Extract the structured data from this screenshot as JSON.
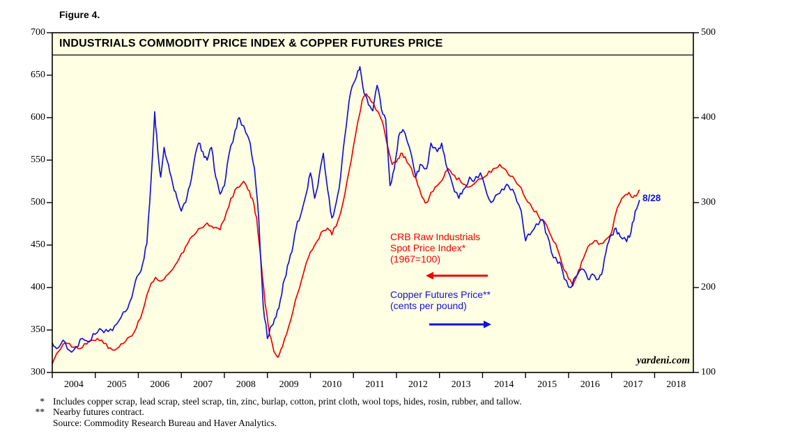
{
  "figure_label": "Figure 4.",
  "chart_data": {
    "type": "line",
    "title": "INDUSTRIALS COMMODITY PRICE INDEX & COPPER FUTURES PRICE",
    "x_axis": {
      "range": [
        2004.0,
        2018.9
      ],
      "years": [
        2004,
        2005,
        2006,
        2007,
        2008,
        2009,
        2010,
        2011,
        2012,
        2013,
        2014,
        2015,
        2016,
        2017,
        2018
      ]
    },
    "left_axis": {
      "range": [
        300,
        700
      ],
      "ticks": [
        300,
        350,
        400,
        450,
        500,
        550,
        600,
        650,
        700
      ]
    },
    "right_axis": {
      "range": [
        100,
        500
      ],
      "ticks": [
        100,
        200,
        300,
        400,
        500
      ]
    },
    "series": [
      {
        "name": "CRB Raw Industrials Spot Price Index (1967=100)",
        "axis": "left",
        "color": "#EE0000",
        "jitter": 3.2,
        "x": [
          2004.0,
          2004.15,
          2004.3,
          2004.45,
          2004.6,
          2004.75,
          2004.9,
          2005.05,
          2005.2,
          2005.35,
          2005.5,
          2005.65,
          2005.8,
          2005.95,
          2006.1,
          2006.25,
          2006.4,
          2006.55,
          2006.7,
          2006.85,
          2007.0,
          2007.15,
          2007.3,
          2007.45,
          2007.6,
          2007.75,
          2007.9,
          2008.0,
          2008.15,
          2008.3,
          2008.45,
          2008.55,
          2008.65,
          2008.75,
          2008.85,
          2008.95,
          2009.05,
          2009.15,
          2009.25,
          2009.35,
          2009.5,
          2009.65,
          2009.8,
          2009.95,
          2010.1,
          2010.25,
          2010.4,
          2010.5,
          2010.65,
          2010.8,
          2010.95,
          2011.1,
          2011.2,
          2011.3,
          2011.4,
          2011.5,
          2011.6,
          2011.7,
          2011.8,
          2011.9,
          2012.0,
          2012.1,
          2012.2,
          2012.35,
          2012.5,
          2012.6,
          2012.7,
          2012.8,
          2012.95,
          2013.1,
          2013.2,
          2013.35,
          2013.5,
          2013.65,
          2013.8,
          2013.95,
          2014.1,
          2014.25,
          2014.4,
          2014.55,
          2014.7,
          2014.85,
          2015.0,
          2015.15,
          2015.3,
          2015.45,
          2015.6,
          2015.75,
          2015.9,
          2016.0,
          2016.1,
          2016.2,
          2016.3,
          2016.45,
          2016.6,
          2016.75,
          2016.9,
          2017.0,
          2017.1,
          2017.2,
          2017.3,
          2017.4,
          2017.5,
          2017.6,
          2017.65
        ],
        "values": [
          310,
          325,
          335,
          330,
          328,
          334,
          338,
          340,
          334,
          329,
          328,
          334,
          342,
          352,
          372,
          398,
          412,
          408,
          416,
          426,
          440,
          452,
          462,
          470,
          476,
          470,
          468,
          480,
          505,
          518,
          525,
          515,
          505,
          482,
          432,
          380,
          345,
          325,
          318,
          330,
          355,
          385,
          410,
          435,
          450,
          465,
          470,
          462,
          480,
          510,
          550,
          595,
          620,
          628,
          620,
          612,
          604,
          590,
          565,
          545,
          548,
          558,
          554,
          540,
          520,
          506,
          500,
          512,
          520,
          530,
          540,
          532,
          524,
          518,
          522,
          528,
          532,
          540,
          545,
          538,
          531,
          520,
          505,
          494,
          484,
          477,
          460,
          444,
          420,
          410,
          402,
          415,
          430,
          448,
          455,
          452,
          458,
          465,
          488,
          500,
          508,
          512,
          506,
          510,
          515
        ]
      },
      {
        "name": "Copper Futures Price (cents per pound)",
        "axis": "right",
        "color": "#1111D6",
        "jitter": 4.5,
        "x": [
          2004.0,
          2004.1,
          2004.25,
          2004.4,
          2004.55,
          2004.7,
          2004.85,
          2005.0,
          2005.15,
          2005.3,
          2005.45,
          2005.6,
          2005.75,
          2005.9,
          2006.0,
          2006.1,
          2006.2,
          2006.3,
          2006.38,
          2006.45,
          2006.52,
          2006.6,
          2006.7,
          2006.8,
          2006.9,
          2007.0,
          2007.1,
          2007.2,
          2007.3,
          2007.4,
          2007.5,
          2007.6,
          2007.7,
          2007.8,
          2007.9,
          2008.0,
          2008.1,
          2008.25,
          2008.35,
          2008.5,
          2008.6,
          2008.7,
          2008.8,
          2008.9,
          2009.0,
          2009.1,
          2009.2,
          2009.3,
          2009.4,
          2009.5,
          2009.6,
          2009.7,
          2009.8,
          2009.9,
          2010.0,
          2010.1,
          2010.2,
          2010.3,
          2010.4,
          2010.5,
          2010.6,
          2010.7,
          2010.8,
          2010.9,
          2011.0,
          2011.1,
          2011.15,
          2011.25,
          2011.35,
          2011.45,
          2011.55,
          2011.65,
          2011.75,
          2011.85,
          2011.95,
          2012.05,
          2012.15,
          2012.3,
          2012.45,
          2012.55,
          2012.7,
          2012.8,
          2012.95,
          2013.05,
          2013.15,
          2013.3,
          2013.45,
          2013.55,
          2013.7,
          2013.8,
          2013.95,
          2014.05,
          2014.2,
          2014.35,
          2014.5,
          2014.6,
          2014.75,
          2014.9,
          2015.0,
          2015.1,
          2015.25,
          2015.4,
          2015.5,
          2015.65,
          2015.8,
          2015.9,
          2016.05,
          2016.15,
          2016.3,
          2016.45,
          2016.55,
          2016.7,
          2016.8,
          2016.9,
          2017.0,
          2017.1,
          2017.2,
          2017.35,
          2017.45,
          2017.55,
          2017.65
        ],
        "values": [
          135,
          128,
          138,
          126,
          130,
          140,
          136,
          145,
          150,
          148,
          155,
          165,
          175,
          200,
          215,
          228,
          252,
          330,
          407,
          362,
          330,
          365,
          345,
          322,
          305,
          290,
          300,
          320,
          350,
          370,
          360,
          350,
          365,
          330,
          310,
          320,
          355,
          385,
          400,
          382,
          370,
          340,
          280,
          180,
          140,
          155,
          165,
          185,
          210,
          230,
          250,
          278,
          290,
          310,
          335,
          305,
          330,
          358,
          315,
          282,
          300,
          330,
          378,
          420,
          440,
          455,
          460,
          428,
          415,
          408,
          438,
          410,
          398,
          320,
          340,
          378,
          386,
          365,
          330,
          345,
          340,
          370,
          360,
          370,
          345,
          322,
          305,
          315,
          330,
          325,
          335,
          320,
          300,
          310,
          315,
          320,
          310,
          290,
          255,
          262,
          275,
          280,
          262,
          235,
          230,
          210,
          200,
          212,
          222,
          210,
          216,
          210,
          222,
          250,
          262,
          270,
          260,
          254,
          265,
          290,
          303
        ]
      }
    ]
  },
  "legend": {
    "crb": {
      "line1": "CRB Raw Industrials",
      "line2": "Spot Price Index*",
      "line3": "(1967=100)"
    },
    "copper": {
      "line1": "Copper Futures Price**",
      "line2": "(cents per pound)"
    }
  },
  "annotations": {
    "last_date": "8/28",
    "watermark": "yardeni.com"
  },
  "footnotes": [
    {
      "marker": "*",
      "text": "Includes copper scrap, lead scrap, steel scrap, tin, zinc, burlap, cotton, print cloth, wool tops, hides, rosin, rubber, and tallow."
    },
    {
      "marker": "**",
      "text": "Nearby futures contract."
    },
    {
      "marker": "",
      "text": "Source: Commodity Research Bureau and Haver Analytics."
    }
  ],
  "colors": {
    "crb_red": "#EE0000",
    "copper_blue": "#1111D6",
    "plot_bg": "#FFFFE3",
    "axis": "#000000"
  }
}
